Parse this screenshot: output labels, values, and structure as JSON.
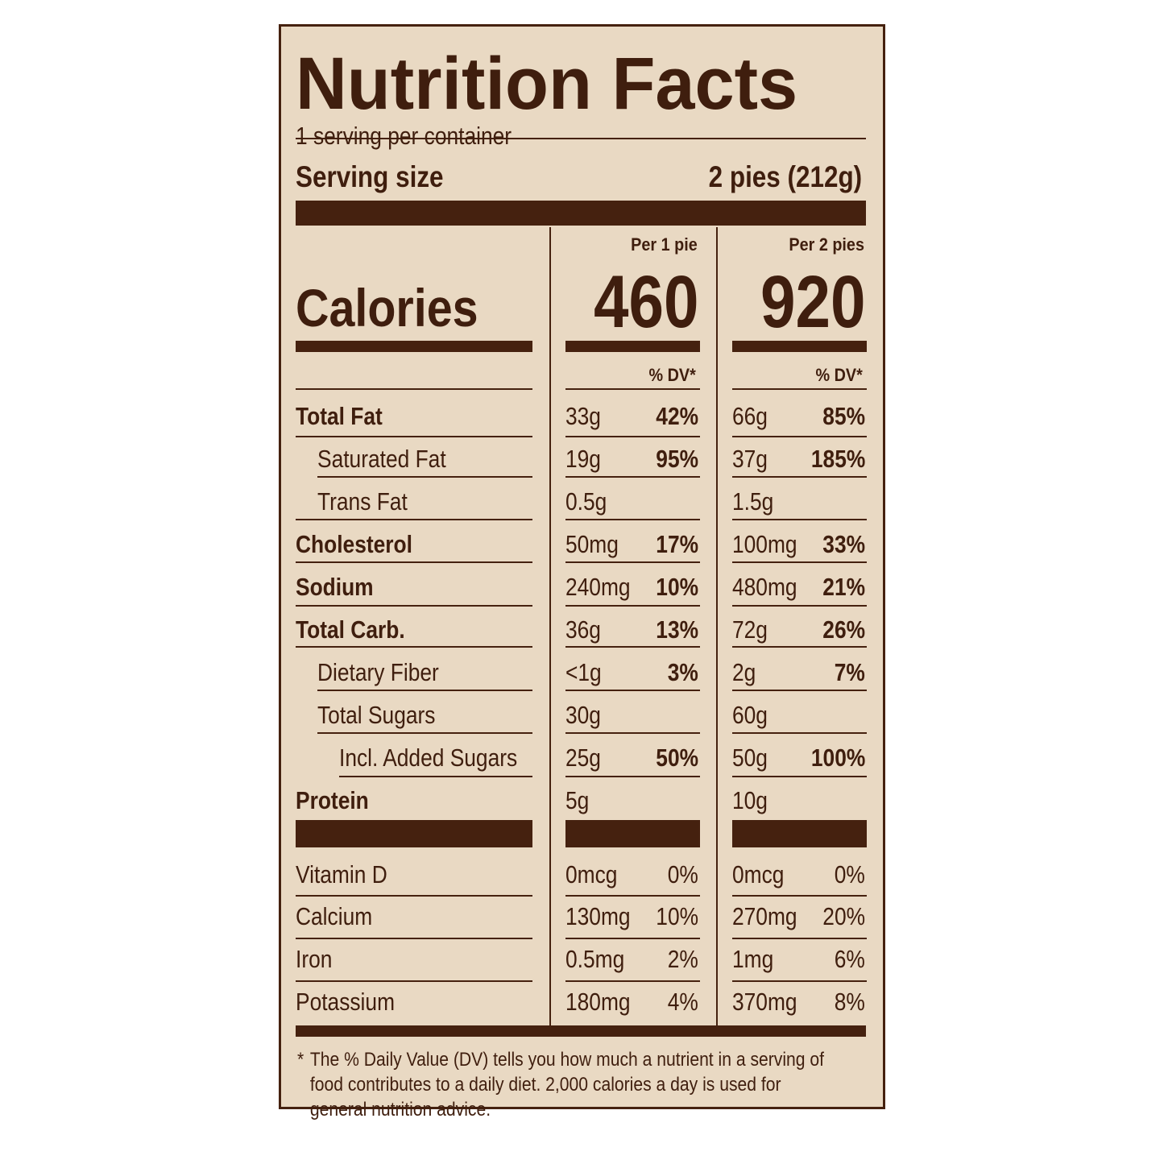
{
  "title": "Nutrition Facts",
  "servings_per_container": "1 serving per container",
  "serving_size": {
    "label": "Serving size",
    "value": "2 pies (212g)"
  },
  "columns": [
    {
      "header": "Per 1 pie",
      "calories": "460",
      "dv_header": "% DV*"
    },
    {
      "header": "Per 2 pies",
      "calories": "920",
      "dv_header": "% DV*"
    }
  ],
  "calories_label": "Calories",
  "nutrients": [
    {
      "name": "Total Fat",
      "bold": true,
      "indent": 0,
      "c1_amount": "33g",
      "c1_dv": "42%",
      "c2_amount": "66g",
      "c2_dv": "85%"
    },
    {
      "name": "Saturated Fat",
      "bold": false,
      "indent": 1,
      "c1_amount": "19g",
      "c1_dv": "95%",
      "c2_amount": "37g",
      "c2_dv": "185%"
    },
    {
      "name": "Trans Fat",
      "bold": false,
      "indent": 1,
      "c1_amount": "0.5g",
      "c1_dv": "",
      "c2_amount": "1.5g",
      "c2_dv": ""
    },
    {
      "name": "Cholesterol",
      "bold": true,
      "indent": 0,
      "c1_amount": "50mg",
      "c1_dv": "17%",
      "c2_amount": "100mg",
      "c2_dv": "33%"
    },
    {
      "name": "Sodium",
      "bold": true,
      "indent": 0,
      "c1_amount": "240mg",
      "c1_dv": "10%",
      "c2_amount": "480mg",
      "c2_dv": "21%"
    },
    {
      "name": "Total Carb.",
      "bold": true,
      "indent": 0,
      "c1_amount": "36g",
      "c1_dv": "13%",
      "c2_amount": "72g",
      "c2_dv": "26%"
    },
    {
      "name": "Dietary Fiber",
      "bold": false,
      "indent": 1,
      "c1_amount": "<1g",
      "c1_dv": "3%",
      "c2_amount": "2g",
      "c2_dv": "7%"
    },
    {
      "name": "Total Sugars",
      "bold": false,
      "indent": 1,
      "c1_amount": "30g",
      "c1_dv": "",
      "c2_amount": "60g",
      "c2_dv": ""
    },
    {
      "name": "Incl. Added Sugars",
      "bold": false,
      "indent": 2,
      "c1_amount": "25g",
      "c1_dv": "50%",
      "c2_amount": "50g",
      "c2_dv": "100%"
    },
    {
      "name": "Protein",
      "bold": true,
      "indent": 0,
      "c1_amount": "5g",
      "c1_dv": "",
      "c2_amount": "10g",
      "c2_dv": ""
    }
  ],
  "vitamins": [
    {
      "name": "Vitamin D",
      "c1_amount": "0mcg",
      "c1_dv": "0%",
      "c2_amount": "0mcg",
      "c2_dv": "0%"
    },
    {
      "name": "Calcium",
      "c1_amount": "130mg",
      "c1_dv": "10%",
      "c2_amount": "270mg",
      "c2_dv": "20%"
    },
    {
      "name": "Iron",
      "c1_amount": "0.5mg",
      "c1_dv": "2%",
      "c2_amount": "1mg",
      "c2_dv": "6%"
    },
    {
      "name": "Potassium",
      "c1_amount": "180mg",
      "c1_dv": "4%",
      "c2_amount": "370mg",
      "c2_dv": "8%"
    }
  ],
  "footnote_star": "*",
  "footnote": "The % Daily Value (DV) tells you how much a nutrient in a serving of food contributes to a daily diet. 2,000 calories a day is used for general nutrition advice.",
  "colors": {
    "ink": "#45210f",
    "background": "#e9d9c3"
  }
}
